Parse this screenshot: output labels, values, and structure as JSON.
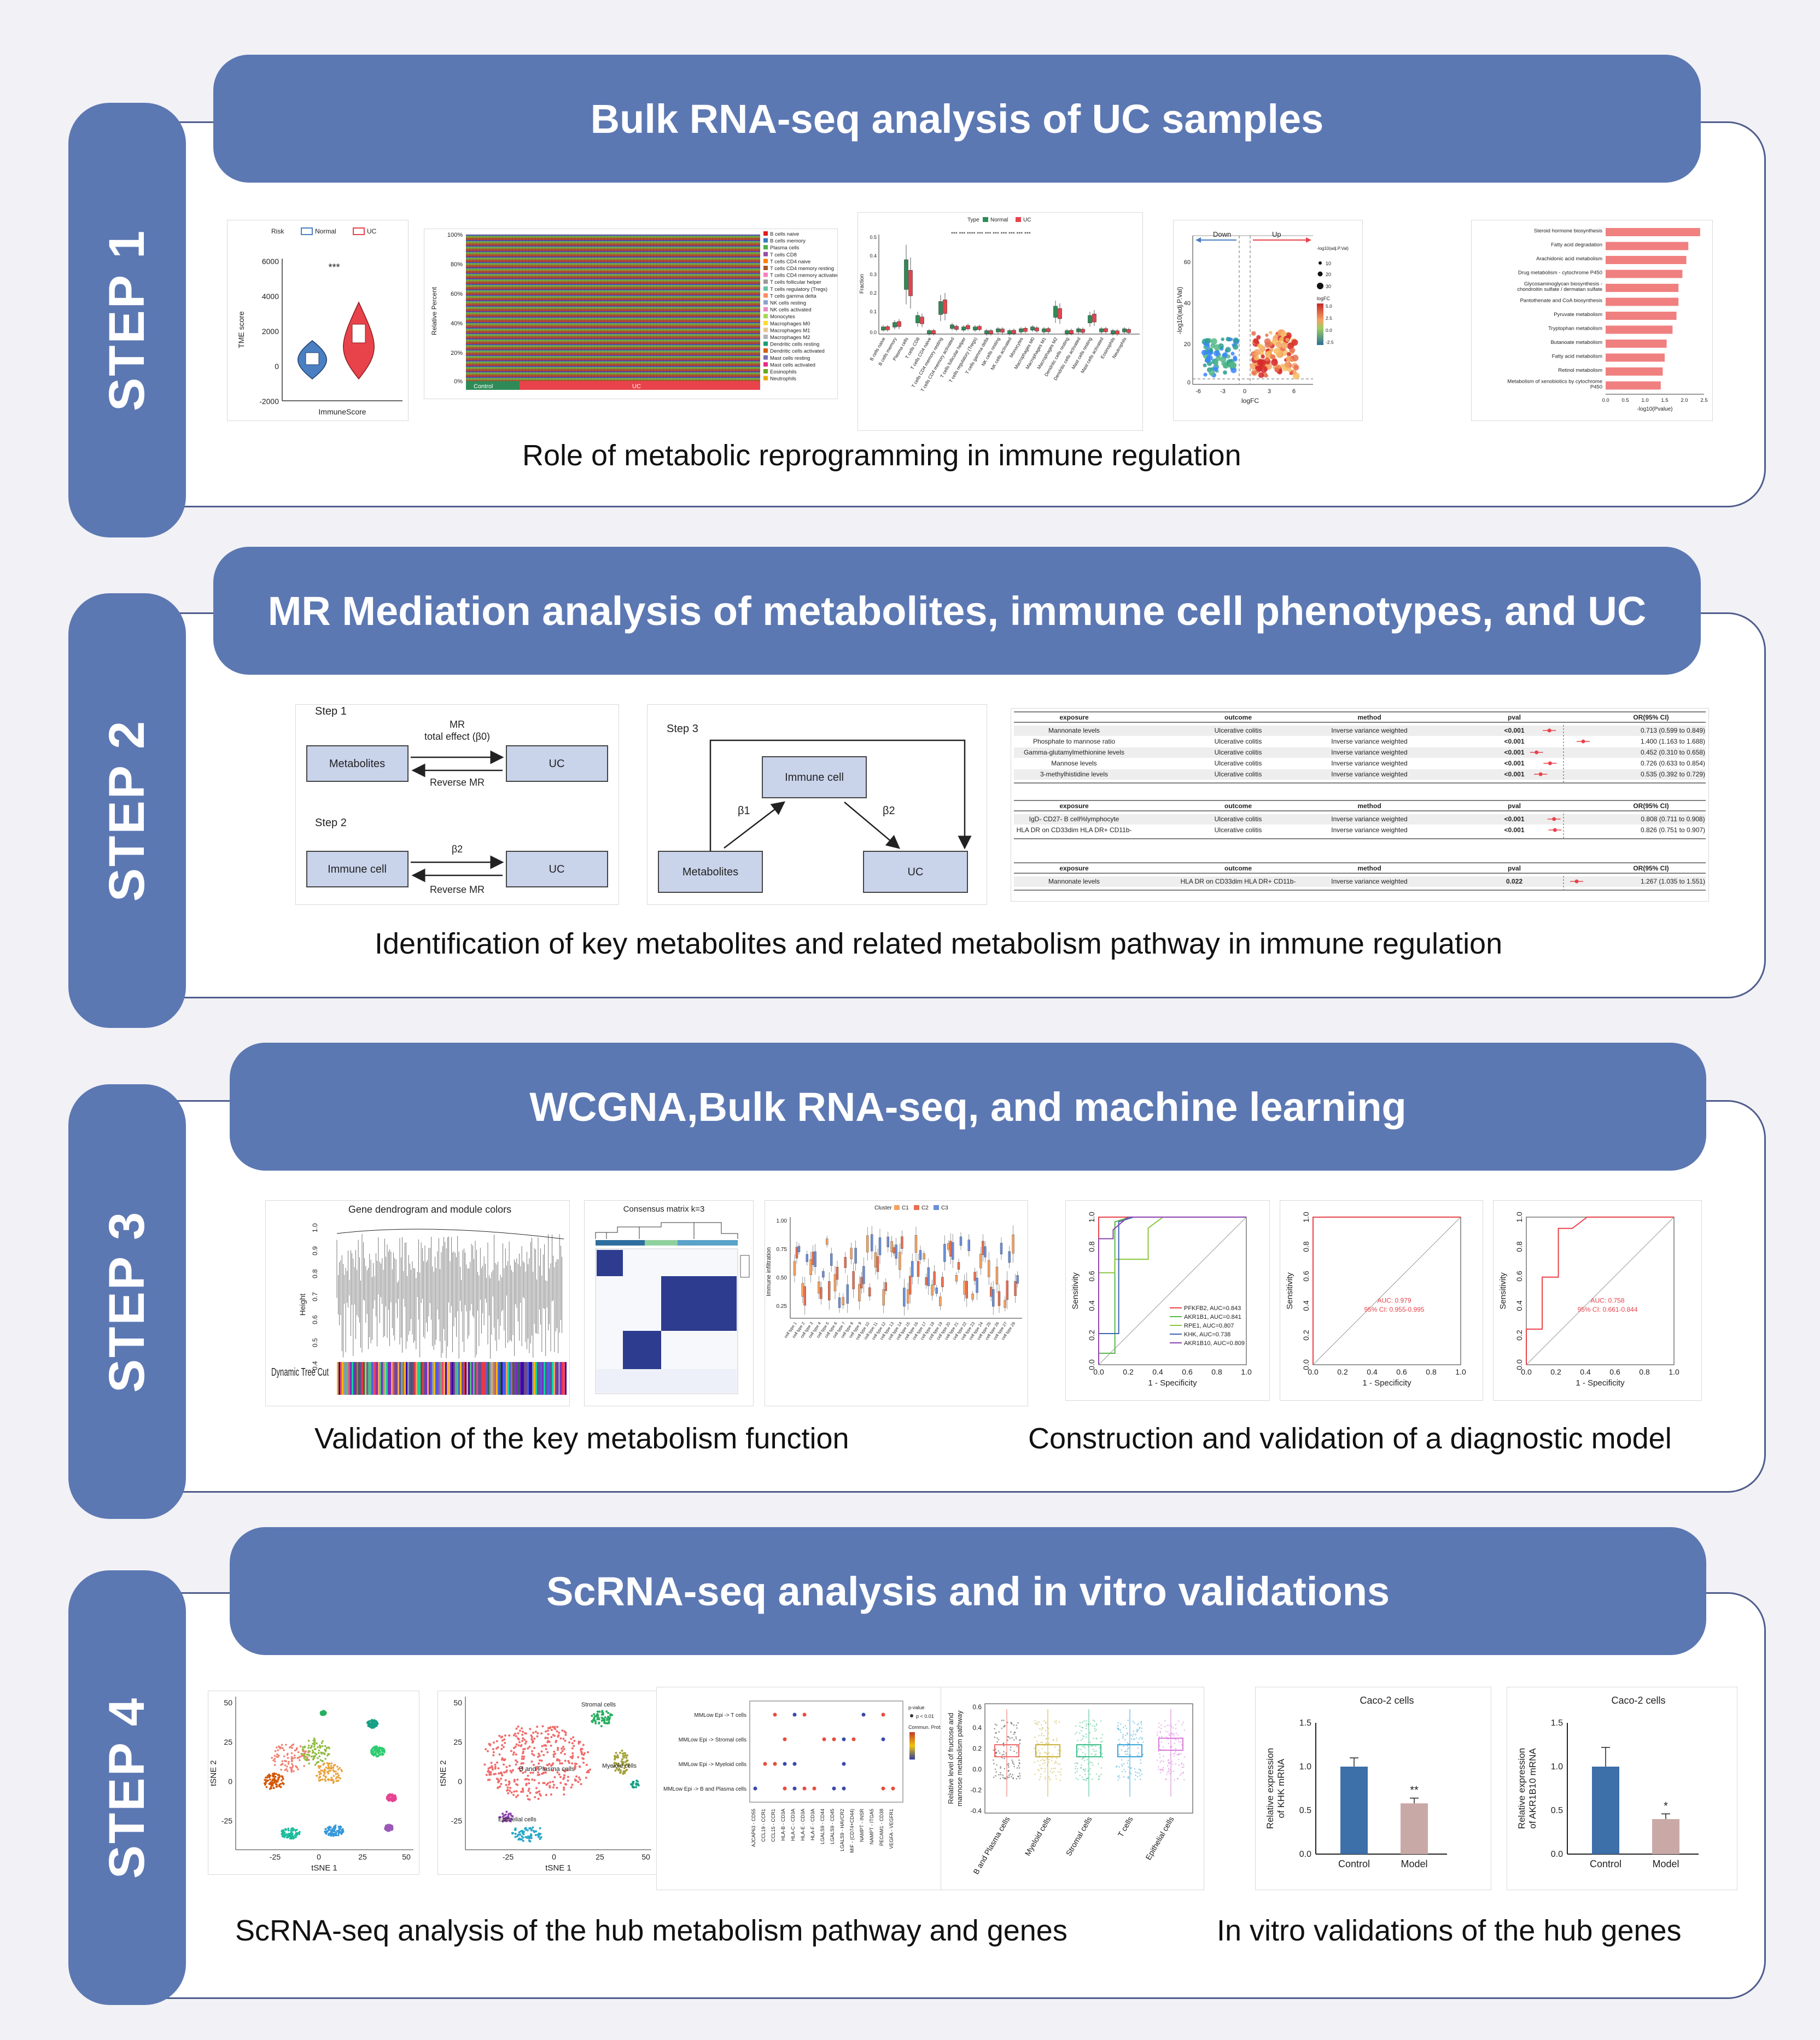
{
  "steps": [
    {
      "tab": "STEP 1",
      "banner": "Bulk RNA-seq analysis of UC samples",
      "captions": [
        "Role of metabolic reprogramming in immune regulation"
      ]
    },
    {
      "tab": "STEP 2",
      "banner": "MR Mediation analysis of metabolites, immune cell phenotypes, and UC",
      "captions": [
        "Identification of key metabolites and related metabolism pathway in immune regulation"
      ]
    },
    {
      "tab": "STEP 3",
      "banner": "WCGNA,Bulk RNA-seq, and machine learning",
      "captions": [
        "Validation of the key metabolism function",
        "Construction and validation of a diagnostic model"
      ]
    },
    {
      "tab": "STEP 4",
      "banner": "ScRNA-seq analysis and in vitro validations",
      "captions": [
        "ScRNA-seq analysis of the hub metabolism pathway and genes",
        "In vitro validations of the hub genes"
      ]
    }
  ],
  "step1_panels": {
    "violin": {
      "legend_title": "Risk",
      "groups": [
        "Normal",
        "UC"
      ],
      "ylabel": "TME score",
      "xlabel": "ImmuneScore",
      "sig": "***",
      "yticks": [
        "6000",
        "4000",
        "2000",
        "0",
        "-2000"
      ],
      "colors": {
        "normal": "#4a7fc1",
        "uc": "#e8434b"
      }
    },
    "stacked_bar": {
      "ylabel": "Relative Percent",
      "yticks": [
        "100%",
        "80%",
        "60%",
        "40%",
        "20%",
        "0%"
      ],
      "groups": [
        "Control",
        "UC"
      ],
      "legend": [
        "B cells naive",
        "B cells memory",
        "Plasma cells",
        "T cells CD8",
        "T cells CD4 naive",
        "T cells CD4 memory resting",
        "T cells CD4 memory activated",
        "T cells follicular helper",
        "T cells regulatory (Tregs)",
        "T cells gamma delta",
        "NK cells resting",
        "NK cells activated",
        "Monocytes",
        "Macrophages M0",
        "Macrophages M1",
        "Macrophages M2",
        "Dendritic cells resting",
        "Dendritic cells activated",
        "Mast cells resting",
        "Mast cells activated",
        "Eosinophils",
        "Neutrophils"
      ]
    },
    "boxplot": {
      "legend_title": "Type",
      "groups": [
        "Normal",
        "UC"
      ],
      "ylabel": "Fraction",
      "yticks": [
        "0.5",
        "0.4",
        "0.3",
        "0.2",
        "0.1",
        "0.0"
      ],
      "categories": [
        "B cells naive",
        "B cells memory",
        "Plasma cells",
        "T cells CD8",
        "T cells CD4 naive",
        "T cells CD4 memory resting",
        "T cells CD4 memory activated",
        "T cells follicular helper",
        "T cells regulatory (Tregs)",
        "T cells gamma delta",
        "NK cells resting",
        "NK cells activated",
        "Monocytes",
        "Macrophages M0",
        "Macrophages M1",
        "Macrophages M2",
        "Dendritic cells resting",
        "Dendritic cells activated",
        "Mast cells resting",
        "Mast cells activated",
        "Eosinophils",
        "Neutrophils"
      ],
      "sig_marks": "*** ***  **** *** *** *** *** *** *** ***"
    },
    "volcano": {
      "down": "Down",
      "up": "Up",
      "ylabel": "-log10(adj.P.Val)",
      "xlabel": "logFC",
      "xticks": [
        "-6",
        "-3",
        "0",
        "3",
        "6"
      ],
      "yticks": [
        "60",
        "40",
        "20",
        "0"
      ],
      "size_title": "-log10(adj.P.Val)",
      "size_values": [
        "10",
        "20",
        "30"
      ],
      "color_title": "logFC",
      "color_values": [
        "5.0",
        "2.5",
        "0.0",
        "-2.5"
      ]
    },
    "pathway": {
      "xlabel": "-log10(Pvalue)",
      "xticks": [
        "0.0",
        "0.5",
        "1.0",
        "1.5",
        "2.0",
        "2.5"
      ],
      "items": [
        {
          "label": "Steroid hormone biosynthesis",
          "value": 2.4
        },
        {
          "label": "Fatty acid degradation",
          "value": 2.1
        },
        {
          "label": "Arachidonic acid metabolism",
          "value": 2.05
        },
        {
          "label": "Drug metabolism - cytochrome P450",
          "value": 1.95
        },
        {
          "label": "Glycosaminoglycan biosynthesis - chondroitin sulfate / dermatan sulfate",
          "value": 1.85
        },
        {
          "label": "Pantothenate and CoA biosynthesis",
          "value": 1.85
        },
        {
          "label": "Pyruvate metabolism",
          "value": 1.8
        },
        {
          "label": "Tryptophan metabolism",
          "value": 1.7
        },
        {
          "label": "Butanoate metabolism",
          "value": 1.55
        },
        {
          "label": "Fatty acid metabolism",
          "value": 1.5
        },
        {
          "label": "Retinol metabolism",
          "value": 1.45
        },
        {
          "label": "Metabolism of xenobiotics by cytochrome P450",
          "value": 1.4
        }
      ]
    }
  },
  "step2_panels": {
    "mr_a": {
      "step1": "Step 1",
      "step2": "Step 2",
      "metabolites": "Metabolites",
      "uc": "UC",
      "immune": "Immune cell",
      "mr": "MR",
      "total": "total effect (β0)",
      "reverse": "Reverse MR",
      "beta2": "β2"
    },
    "mr_b": {
      "step3": "Step 3",
      "immune": "Immune cell",
      "metabolites": "Metabolites",
      "uc": "UC",
      "beta1": "β1",
      "beta2": "β2"
    },
    "forest": {
      "headers": [
        "exposure",
        "outcome",
        "method",
        "pval",
        "OR(95% CI)"
      ],
      "block1": [
        [
          "Mannonate levels",
          "Ulcerative colitis",
          "Inverse variance weighted",
          "<0.001",
          "0.713 (0.599 to 0.849)"
        ],
        [
          "Phosphate to mannose ratio",
          "Ulcerative colitis",
          "Inverse variance weighted",
          "<0.001",
          "1.400 (1.163 to 1.688)"
        ],
        [
          "Gamma-glutamylmethionine levels",
          "Ulcerative colitis",
          "Inverse variance weighted",
          "<0.001",
          "0.452 (0.310 to 0.658)"
        ],
        [
          "Mannose levels",
          "Ulcerative colitis",
          "Inverse variance weighted",
          "<0.001",
          "0.726 (0.633 to 0.854)"
        ],
        [
          "3-methylhistidine levels",
          "Ulcerative colitis",
          "Inverse variance weighted",
          "<0.001",
          "0.535 (0.392 to 0.729)"
        ]
      ],
      "block2_headers": [
        "exposure",
        "outcome",
        "method",
        "pval",
        "OR(95% CI)"
      ],
      "block2": [
        [
          "IgD- CD27- B cell%lymphocyte",
          "Ulcerative colitis",
          "Inverse variance weighted",
          "<0.001",
          "0.808 (0.711 to 0.908)"
        ],
        [
          "HLA DR on CD33dim HLA DR+ CD11b-",
          "Ulcerative colitis",
          "Inverse variance weighted",
          "<0.001",
          "0.826 (0.751 to 0.907)"
        ]
      ],
      "block3_headers": [
        "exposure",
        "outcome",
        "method",
        "pval",
        "OR(95% CI)"
      ],
      "block3": [
        [
          "Mannonate levels",
          "HLA DR on CD33dim HLA DR+ CD11b-",
          "Inverse variance weighted",
          "0.022",
          "1.267 (1.035 to 1.551)"
        ]
      ]
    }
  },
  "step3_panels": {
    "dendro": {
      "title": "Gene dendrogram and module colors",
      "ylabel": "Height",
      "yticks": [
        "1.0",
        "0.9",
        "0.8",
        "0.7",
        "0.6",
        "0.5",
        "0.4"
      ],
      "bar_label": "Dynamic Tree Cut"
    },
    "consensus": {
      "title": "Consensus matrix k=3"
    },
    "immune_box": {
      "ylabel": "Immune infiltration",
      "yticks": [
        "1.00",
        "0.75",
        "0.50",
        "0.25"
      ],
      "legend_title": "Cluster",
      "groups": [
        "C1",
        "C2",
        "C3"
      ]
    },
    "roc1": {
      "xlabel": "1 - Specificity",
      "ylabel": "Sensitivity",
      "lines": [
        {
          "label": "PFKFB2, AUC=0.843",
          "color": "#e8434b"
        },
        {
          "label": "AKR1B1, AUC=0.841",
          "color": "#58b84a"
        },
        {
          "label": "RPE1, AUC=0.807",
          "color": "#8cc63f"
        },
        {
          "label": "KHK, AUC=0.738",
          "color": "#3d64b0"
        },
        {
          "label": "AKR1B10, AUC=0.809",
          "color": "#8e44ad"
        }
      ],
      "ticks": [
        "0.0",
        "0.2",
        "0.4",
        "0.6",
        "0.8",
        "1.0"
      ]
    },
    "roc2": {
      "xlabel": "1 - Specificity",
      "ylabel": "Sensitivity",
      "auc": "AUC: 0.979",
      "ci": "95% CI: 0.955-0.995",
      "ticks": [
        "0.0",
        "0.2",
        "0.4",
        "0.6",
        "0.8",
        "1.0"
      ]
    },
    "roc3": {
      "xlabel": "1 - Specificity",
      "ylabel": "Sensitivity",
      "auc": "AUC: 0.758",
      "ci": "95% CI: 0.661-0.844",
      "ticks": [
        "0.0",
        "0.2",
        "0.4",
        "0.6",
        "0.8",
        "1.0"
      ]
    }
  },
  "step4_panels": {
    "tsne1": {
      "xlabel": "tSNE 1",
      "ylabel": "tSNE 2",
      "xticks": [
        "-25",
        "0",
        "25",
        "50"
      ],
      "yticks": [
        "50",
        "25",
        "0",
        "-25"
      ]
    },
    "tsne2": {
      "xlabel": "tSNE 1",
      "ylabel": "tSNE 2",
      "xticks": [
        "-25",
        "0",
        "25",
        "50"
      ],
      "yticks": [
        "50",
        "25",
        "0",
        "-25"
      ],
      "labels": [
        "Stromal cells",
        "B and Plasma cells",
        "Myeloid cells",
        "Epithelial cells"
      ]
    },
    "dotplot": {
      "rows": [
        "MMLow Epi -> T cells",
        "MMLow Epi -> Stromal cells",
        "MMLow Epi -> Myeloid cells",
        "MMLow Epi -> B and Plasma cells"
      ],
      "cols": [
        "AJCAP63 - CD55",
        "CCL19 - CCR1",
        "CCL15 - CCR1",
        "HLA-B - CD3A",
        "HLA-C - CD3A",
        "HLA-E - CD3A",
        "HLA-F - CD3A",
        "LGALS9 - CD44",
        "LGALS9 - CD45",
        "LGALS9 - HAVCR2",
        "MIF - (CD74+CD44)",
        "NAMPT - INSR",
        "NAMPT - ITGA5",
        "PECAM1 - CD38",
        "VEGFA - VEGFR1"
      ],
      "legend_title": "p-value",
      "legend_value": "p < 0.01",
      "color_title": "Commun. Prob."
    },
    "scorebox": {
      "ylabel": "Relative level of fructose and mannose metabolism pathway",
      "yticks": [
        "0.6",
        "0.4",
        "0.2",
        "0.0",
        "-0.2",
        "-0.4"
      ],
      "categories": [
        "B and Plasma cells",
        "Myeloid cells",
        "Stromal cells",
        "T cells",
        "Epithelial cells"
      ]
    },
    "bar_khk": {
      "title": "Caco-2 cells",
      "ylabel": "Relative expression of KHK mRNA",
      "groups": [
        "Control",
        "Model"
      ],
      "values": [
        1.0,
        0.58
      ],
      "sig": "**",
      "yticks": [
        "1.5",
        "1.0",
        "0.5",
        "0.0"
      ]
    },
    "bar_akr": {
      "title": "Caco-2 cells",
      "ylabel": "Relative expression of AKR1B10 mRNA",
      "groups": [
        "Control",
        "Model"
      ],
      "values": [
        1.0,
        0.4
      ],
      "sig": "*",
      "yticks": [
        "1.5",
        "1.0",
        "0.5",
        "0.0"
      ]
    }
  }
}
